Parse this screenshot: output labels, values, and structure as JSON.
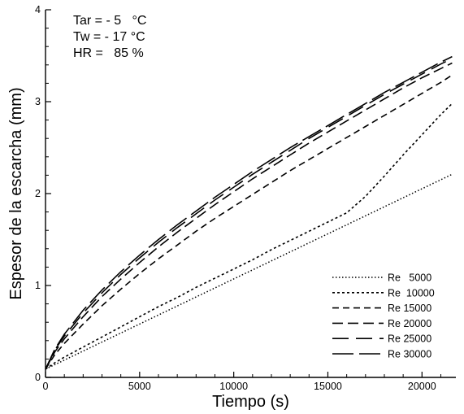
{
  "chart_data": {
    "type": "line",
    "xlabel": "Tiempo (s)",
    "ylabel": "Espesor de la escarcha (mm)",
    "xlim": [
      0,
      21800
    ],
    "ylim": [
      0,
      4
    ],
    "x_ticks": [
      0,
      5000,
      10000,
      15000,
      20000
    ],
    "y_ticks": [
      0,
      1,
      2,
      3,
      4
    ],
    "grid": false,
    "legend_position": "bottom-right",
    "annotations": [
      "Tar = - 5   °C",
      "Tw = - 17 °C",
      "HR =   85 %"
    ],
    "series": [
      {
        "name": "Re   5000",
        "dash": "dotted",
        "x": [
          0,
          21600
        ],
        "y": [
          0.09,
          2.21
        ]
      },
      {
        "name": "Re  10000",
        "dash": "short-dash",
        "x": [
          0,
          500,
          1000,
          2000,
          3000,
          4000,
          5000,
          6000,
          7000,
          8000,
          9000,
          10000,
          11000,
          12000,
          13000,
          14000,
          15000,
          16000,
          17000,
          18000,
          19000,
          20000,
          21000,
          21600
        ],
        "y": [
          0.09,
          0.16,
          0.22,
          0.33,
          0.44,
          0.55,
          0.66,
          0.77,
          0.87,
          0.98,
          1.08,
          1.18,
          1.28,
          1.39,
          1.49,
          1.59,
          1.69,
          1.79,
          1.97,
          2.19,
          2.42,
          2.64,
          2.86,
          2.98
        ]
      },
      {
        "name": "Re 15000",
        "dash": "medium-dash",
        "x": [
          0,
          500,
          1000,
          2000,
          3000,
          4000,
          5000,
          6000,
          7000,
          8000,
          9000,
          10000,
          11000,
          12000,
          13000,
          14000,
          15000,
          16000,
          17000,
          18000,
          19000,
          20000,
          21000,
          21600
        ],
        "y": [
          0.09,
          0.25,
          0.37,
          0.58,
          0.78,
          0.96,
          1.13,
          1.29,
          1.44,
          1.59,
          1.73,
          1.86,
          1.99,
          2.12,
          2.25,
          2.37,
          2.49,
          2.61,
          2.73,
          2.85,
          2.97,
          3.09,
          3.21,
          3.29
        ]
      },
      {
        "name": "Re 20000",
        "dash": "long-dash",
        "x": [
          0,
          500,
          1000,
          2000,
          3000,
          4000,
          5000,
          6000,
          7000,
          8000,
          9000,
          10000,
          11000,
          12000,
          13000,
          14000,
          15000,
          16000,
          17000,
          18000,
          19000,
          20000,
          21000,
          21600
        ],
        "y": [
          0.09,
          0.28,
          0.42,
          0.66,
          0.88,
          1.07,
          1.25,
          1.42,
          1.58,
          1.73,
          1.88,
          2.02,
          2.16,
          2.29,
          2.42,
          2.55,
          2.67,
          2.79,
          2.91,
          3.03,
          3.15,
          3.26,
          3.36,
          3.42
        ]
      },
      {
        "name": "Re 25000",
        "dash": "long-dash-gap",
        "x": [
          0,
          500,
          1000,
          2000,
          3000,
          4000,
          5000,
          6000,
          7000,
          8000,
          9000,
          10000,
          11000,
          12000,
          13000,
          14000,
          15000,
          16000,
          17000,
          18000,
          19000,
          20000,
          21000,
          21600
        ],
        "y": [
          0.09,
          0.3,
          0.45,
          0.7,
          0.92,
          1.12,
          1.3,
          1.47,
          1.63,
          1.78,
          1.93,
          2.07,
          2.21,
          2.34,
          2.47,
          2.6,
          2.72,
          2.84,
          2.96,
          3.08,
          3.19,
          3.3,
          3.41,
          3.47
        ]
      },
      {
        "name": "Re 30000",
        "dash": "extra-long-dash",
        "x": [
          0,
          500,
          1000,
          2000,
          3000,
          4000,
          5000,
          6000,
          7000,
          8000,
          9000,
          10000,
          11000,
          12000,
          13000,
          14000,
          15000,
          16000,
          17000,
          18000,
          19000,
          20000,
          21000,
          21600
        ],
        "y": [
          0.09,
          0.31,
          0.47,
          0.73,
          0.95,
          1.15,
          1.33,
          1.5,
          1.66,
          1.81,
          1.96,
          2.1,
          2.24,
          2.37,
          2.5,
          2.62,
          2.74,
          2.86,
          2.98,
          3.1,
          3.21,
          3.32,
          3.43,
          3.49
        ]
      }
    ]
  }
}
